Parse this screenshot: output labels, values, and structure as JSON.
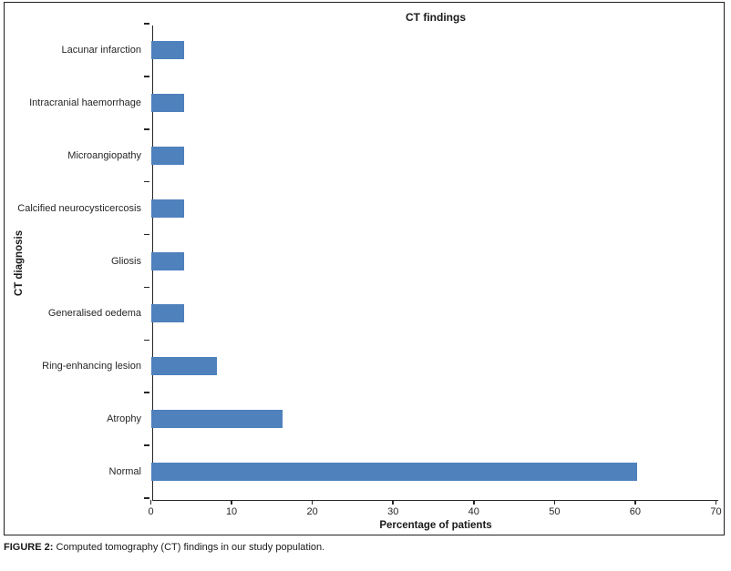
{
  "figure": {
    "caption_label": "FIGURE 2:",
    "caption_text": " Computed tomography (CT) findings in our study population."
  },
  "chart_data": {
    "type": "bar",
    "orientation": "horizontal",
    "title": "CT findings",
    "xlabel": "Percentage of patients",
    "ylabel": "CT diagnosis",
    "categories": [
      "Lacunar infarction",
      "Intracranial haemorrhage",
      "Microangiopathy",
      "Calcified neurocysticercosis",
      "Gliosis",
      "Generalised oedema",
      "Ring-enhancing lesion",
      "Atrophy",
      "Normal"
    ],
    "values": [
      4.1,
      4.1,
      4.1,
      4.1,
      4.1,
      4.1,
      8.2,
      16.3,
      60.2
    ],
    "xlim": [
      0,
      70
    ],
    "xticks": [
      0,
      10,
      20,
      30,
      40,
      50,
      60,
      70
    ],
    "bar_color": "#4F81BD",
    "axis_color": "#262626",
    "grid": false,
    "legend_position": "none"
  }
}
